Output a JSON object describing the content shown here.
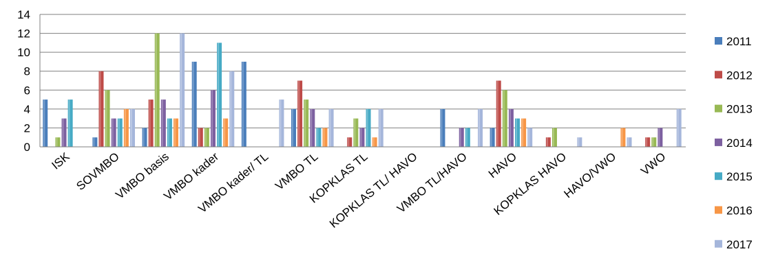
{
  "chart_data": {
    "type": "bar",
    "title": "",
    "xlabel": "",
    "ylabel": "",
    "ylim": [
      0,
      14
    ],
    "yticks": [
      0,
      2,
      4,
      6,
      8,
      10,
      12,
      14
    ],
    "grid": true,
    "legend_position": "right",
    "categories": [
      "ISK",
      "SOVMBO",
      "VMBO basis",
      "VMBO kader",
      "VMBO kader/ TL",
      "VMBO TL",
      "KOPKLAS TL",
      "KOPKLAS TL/ HAVO",
      "VMBO TL/HAVO",
      "HAVO",
      "KOPKLAS HAVO",
      "HAVO/VWO",
      "VWO"
    ],
    "series": [
      {
        "name": "2011",
        "color": "#4a7ebb",
        "values": [
          5,
          1,
          2,
          9,
          9,
          4,
          0,
          0,
          4,
          2,
          0,
          0,
          0
        ]
      },
      {
        "name": "2012",
        "color": "#be4b48",
        "values": [
          0,
          8,
          5,
          2,
          0,
          7,
          1,
          0,
          0,
          7,
          1,
          0,
          1
        ]
      },
      {
        "name": "2013",
        "color": "#98b954",
        "values": [
          1,
          6,
          12,
          2,
          0,
          5,
          3,
          0,
          0,
          6,
          2,
          0,
          1
        ]
      },
      {
        "name": "2014",
        "color": "#7d60a0",
        "values": [
          3,
          3,
          5,
          6,
          0,
          4,
          2,
          0,
          2,
          4,
          0,
          0,
          2
        ]
      },
      {
        "name": "2015",
        "color": "#46aac5",
        "values": [
          5,
          3,
          3,
          11,
          0,
          2,
          4,
          0,
          2,
          3,
          0,
          0,
          0
        ]
      },
      {
        "name": "2016",
        "color": "#f79646",
        "values": [
          0,
          4,
          3,
          3,
          0,
          2,
          1,
          0,
          0,
          3,
          0,
          2,
          0
        ]
      },
      {
        "name": "2017",
        "color": "#a5b6db",
        "values": [
          0,
          4,
          12,
          8,
          5,
          4,
          4,
          0,
          4,
          2,
          1,
          1,
          4
        ]
      }
    ]
  }
}
